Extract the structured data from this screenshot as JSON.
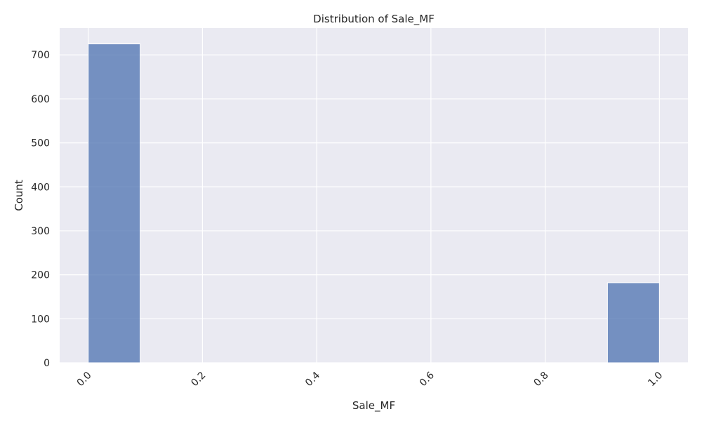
{
  "chart_data": {
    "type": "bar",
    "title": "Distribution of Sale_MF",
    "xlabel": "Sale_MF",
    "ylabel": "Count",
    "bins": [
      {
        "start": 0.0,
        "end": 0.0909,
        "count": 725
      },
      {
        "start": 0.0909,
        "end": 0.1818,
        "count": 0
      },
      {
        "start": 0.1818,
        "end": 0.2727,
        "count": 0
      },
      {
        "start": 0.2727,
        "end": 0.3636,
        "count": 0
      },
      {
        "start": 0.3636,
        "end": 0.4545,
        "count": 0
      },
      {
        "start": 0.4545,
        "end": 0.5455,
        "count": 0
      },
      {
        "start": 0.5455,
        "end": 0.6364,
        "count": 0
      },
      {
        "start": 0.6364,
        "end": 0.7273,
        "count": 0
      },
      {
        "start": 0.7273,
        "end": 0.8182,
        "count": 0
      },
      {
        "start": 0.8182,
        "end": 0.9091,
        "count": 0
      },
      {
        "start": 0.9091,
        "end": 1.0,
        "count": 182
      }
    ],
    "xlim": [
      -0.05,
      1.05
    ],
    "ylim": [
      0,
      761
    ],
    "x_ticks": [
      0.0,
      0.2,
      0.4,
      0.6,
      0.8,
      1.0
    ],
    "x_tick_labels": [
      "0.0",
      "0.2",
      "0.4",
      "0.6",
      "0.8",
      "1.0"
    ],
    "y_ticks": [
      0,
      100,
      200,
      300,
      400,
      500,
      600,
      700
    ],
    "y_tick_labels": [
      "0",
      "100",
      "200",
      "300",
      "400",
      "500",
      "600",
      "700"
    ],
    "grid": true,
    "x_tick_rotation": "45",
    "colors": {
      "bar": "#4c72b0",
      "background": "#eaeaf2",
      "grid": "#ffffff"
    }
  }
}
